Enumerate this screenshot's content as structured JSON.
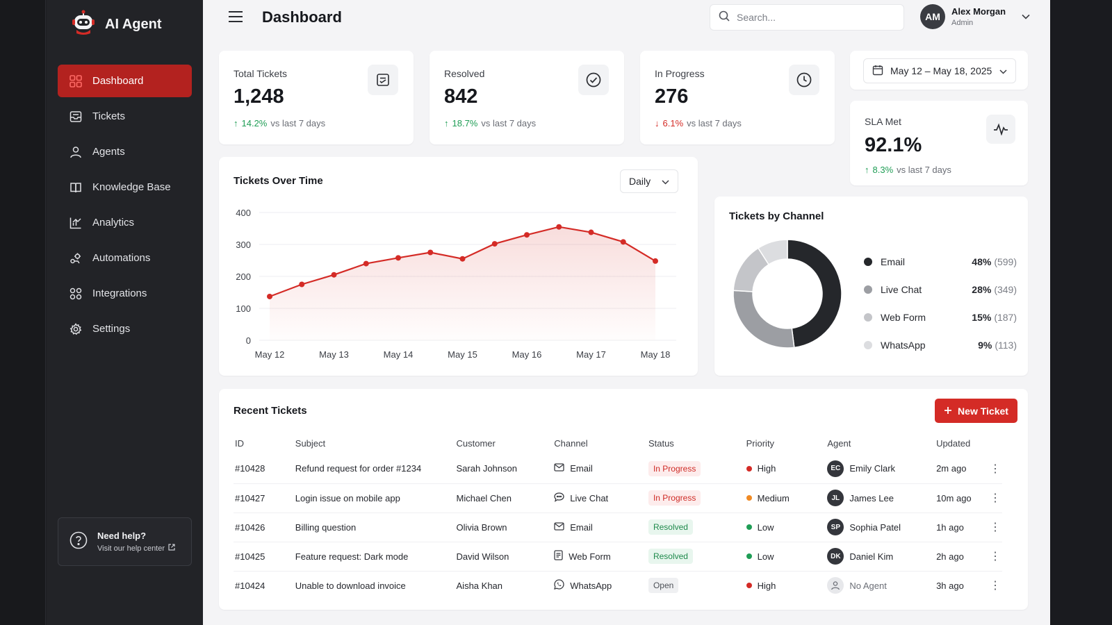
{
  "app": {
    "name": "AI Agent"
  },
  "sidebar": {
    "items": [
      {
        "label": "Dashboard",
        "icon": "grid-icon",
        "active": true
      },
      {
        "label": "Tickets",
        "icon": "inbox-icon"
      },
      {
        "label": "Agents",
        "icon": "user-icon"
      },
      {
        "label": "Knowledge Base",
        "icon": "book-icon"
      },
      {
        "label": "Analytics",
        "icon": "bar-chart-icon"
      },
      {
        "label": "Automations",
        "icon": "automation-icon"
      },
      {
        "label": "Integrations",
        "icon": "integrations-icon"
      },
      {
        "label": "Settings",
        "icon": "gear-icon"
      }
    ],
    "help": {
      "title": "Need help?",
      "link": "Visit our help center"
    }
  },
  "header": {
    "title": "Dashboard",
    "search_placeholder": "Search...",
    "user": {
      "name": "Alex Morgan",
      "role": "Admin",
      "initials": "AM"
    }
  },
  "kpis": [
    {
      "label": "Total Tickets",
      "value": "1,248",
      "change": "14.2%",
      "direction": "up",
      "period": "vs last 7 days",
      "icon": "document-icon"
    },
    {
      "label": "Resolved",
      "value": "842",
      "change": "18.7%",
      "direction": "up",
      "period": "vs last 7 days",
      "icon": "check-circle-icon"
    },
    {
      "label": "In Progress",
      "value": "276",
      "change": "6.1%",
      "direction": "down",
      "period": "vs last 7 days",
      "icon": "clock-icon"
    },
    {
      "label": "SLA Met",
      "value": "92.1%",
      "change": "8.3%",
      "direction": "up",
      "period": "vs last 7 days",
      "icon": "pulse-icon"
    }
  ],
  "date_range": "May 12 – May 18, 2025",
  "line_chart": {
    "title": "Tickets Over Time",
    "granularity": "Daily"
  },
  "chart_data": [
    {
      "type": "area",
      "title": "Tickets Over Time",
      "x": [
        "May 12",
        "",
        "May 13",
        "",
        "May 14",
        "",
        "May 15",
        "",
        "May 16",
        "",
        "May 17",
        "",
        "May 18"
      ],
      "x_ticks": [
        "May 12",
        "May 13",
        "May 14",
        "May 15",
        "May 16",
        "May 17",
        "May 18"
      ],
      "values": [
        137,
        175,
        205,
        240,
        258,
        275,
        255,
        302,
        330,
        355,
        338,
        308,
        248
      ],
      "ylim": [
        0,
        400
      ],
      "y_ticks": [
        0,
        100,
        200,
        300,
        400
      ],
      "color": "#d42b26"
    },
    {
      "type": "pie",
      "title": "Tickets by Channel",
      "categories": [
        "Email",
        "Live Chat",
        "Web Form",
        "WhatsApp"
      ],
      "values": [
        599,
        349,
        187,
        113
      ],
      "percentages": [
        "48%",
        "28%",
        "15%",
        "9%"
      ],
      "counts": [
        "(599)",
        "(349)",
        "(187)",
        "(113)"
      ],
      "colors": [
        "#25272b",
        "#9c9ea3",
        "#c4c5c9",
        "#dcdde0"
      ]
    }
  ],
  "tickets": {
    "title": "Recent Tickets",
    "new_button": "New Ticket",
    "columns": [
      "ID",
      "Subject",
      "Customer",
      "Channel",
      "Status",
      "Priority",
      "Agent",
      "Updated"
    ],
    "rows": [
      {
        "id": "#10428",
        "subject": "Refund request for order #1234",
        "customer": "Sarah Johnson",
        "channel": "Email",
        "channel_icon": "mail-icon",
        "status": "In Progress",
        "status_kind": "prog",
        "priority": "High",
        "priority_color": "#d42b26",
        "agent": "Emily Clark",
        "agent_initials": "EC",
        "updated": "2m ago"
      },
      {
        "id": "#10427",
        "subject": "Login issue on mobile app",
        "customer": "Michael Chen",
        "channel": "Live Chat",
        "channel_icon": "chat-icon",
        "status": "In Progress",
        "status_kind": "prog",
        "priority": "Medium",
        "priority_color": "#f08a24",
        "agent": "James Lee",
        "agent_initials": "JL",
        "updated": "10m ago"
      },
      {
        "id": "#10426",
        "subject": "Billing question",
        "customer": "Olivia Brown",
        "channel": "Email",
        "channel_icon": "mail-icon",
        "status": "Resolved",
        "status_kind": "res",
        "priority": "Low",
        "priority_color": "#1f9d55",
        "agent": "Sophia Patel",
        "agent_initials": "SP",
        "updated": "1h ago"
      },
      {
        "id": "#10425",
        "subject": "Feature request: Dark mode",
        "customer": "David Wilson",
        "channel": "Web Form",
        "channel_icon": "form-icon",
        "status": "Resolved",
        "status_kind": "res",
        "priority": "Low",
        "priority_color": "#1f9d55",
        "agent": "Daniel Kim",
        "agent_initials": "DK",
        "updated": "2h ago"
      },
      {
        "id": "#10424",
        "subject": "Unable to download invoice",
        "customer": "Aisha Khan",
        "channel": "WhatsApp",
        "channel_icon": "whatsapp-icon",
        "status": "Open",
        "status_kind": "open",
        "priority": "High",
        "priority_color": "#d42b26",
        "agent": "No Agent",
        "agent_initials": "",
        "updated": "3h ago"
      }
    ]
  },
  "colors": {
    "accent": "#d42b26",
    "sidebar": "#222327",
    "up": "#1f9d55",
    "down": "#d42b26"
  }
}
